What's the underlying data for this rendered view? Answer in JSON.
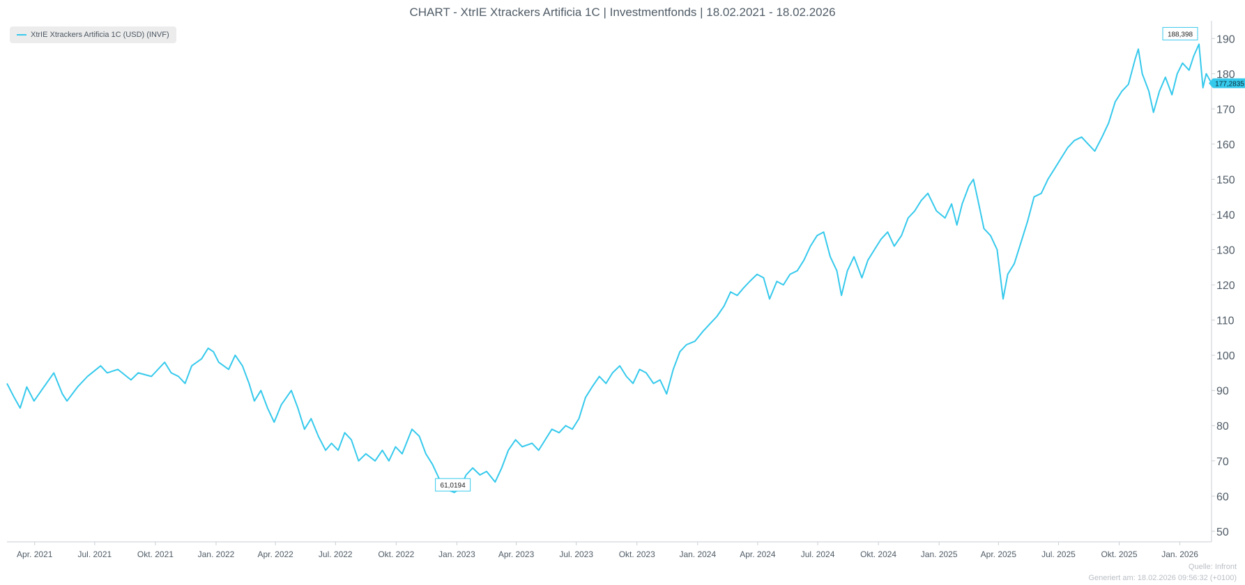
{
  "chart_data": {
    "type": "line",
    "title": "CHART - XtrIE Xtrackers Artificia 1C | Investmentfonds | 18.02.2021 - 18.02.2026",
    "legend": {
      "position": "top-left",
      "label": "XtrIE Xtrackers Artificia 1C (USD) (INVF)"
    },
    "series": [
      {
        "name": "XtrIE Xtrackers Artificia 1C (USD) (INVF)",
        "color": "#35c9ec",
        "points": [
          [
            "2021-02-18",
            92
          ],
          [
            "2021-03-01",
            88
          ],
          [
            "2021-03-10",
            85
          ],
          [
            "2021-03-20",
            91
          ],
          [
            "2021-03-31",
            87
          ],
          [
            "2021-04-15",
            91
          ],
          [
            "2021-04-30",
            95
          ],
          [
            "2021-05-13",
            89
          ],
          [
            "2021-05-20",
            87
          ],
          [
            "2021-06-05",
            91
          ],
          [
            "2021-06-20",
            94
          ],
          [
            "2021-07-10",
            97
          ],
          [
            "2021-07-20",
            95
          ],
          [
            "2021-08-05",
            96
          ],
          [
            "2021-08-25",
            93
          ],
          [
            "2021-09-05",
            95
          ],
          [
            "2021-09-25",
            94
          ],
          [
            "2021-10-15",
            98
          ],
          [
            "2021-10-25",
            95
          ],
          [
            "2021-11-05",
            94
          ],
          [
            "2021-11-15",
            92
          ],
          [
            "2021-11-25",
            97
          ],
          [
            "2021-12-10",
            99
          ],
          [
            "2021-12-20",
            102
          ],
          [
            "2021-12-28",
            101
          ],
          [
            "2022-01-05",
            98
          ],
          [
            "2022-01-20",
            96
          ],
          [
            "2022-01-30",
            100
          ],
          [
            "2022-02-10",
            97
          ],
          [
            "2022-02-20",
            92
          ],
          [
            "2022-02-28",
            87
          ],
          [
            "2022-03-10",
            90
          ],
          [
            "2022-03-20",
            85
          ],
          [
            "2022-03-30",
            81
          ],
          [
            "2022-04-10",
            86
          ],
          [
            "2022-04-25",
            90
          ],
          [
            "2022-05-05",
            85
          ],
          [
            "2022-05-15",
            79
          ],
          [
            "2022-05-25",
            82
          ],
          [
            "2022-06-05",
            77
          ],
          [
            "2022-06-16",
            73
          ],
          [
            "2022-06-25",
            75
          ],
          [
            "2022-07-05",
            73
          ],
          [
            "2022-07-15",
            78
          ],
          [
            "2022-07-25",
            76
          ],
          [
            "2022-08-05",
            70
          ],
          [
            "2022-08-16",
            72
          ],
          [
            "2022-08-30",
            70
          ],
          [
            "2022-09-10",
            73
          ],
          [
            "2022-09-20",
            70
          ],
          [
            "2022-09-30",
            74
          ],
          [
            "2022-10-10",
            72
          ],
          [
            "2022-10-25",
            79
          ],
          [
            "2022-11-05",
            77
          ],
          [
            "2022-11-15",
            72
          ],
          [
            "2022-11-25",
            69
          ],
          [
            "2022-12-05",
            65
          ],
          [
            "2022-12-15",
            62
          ],
          [
            "2022-12-28",
            61.0194
          ],
          [
            "2023-01-05",
            62
          ],
          [
            "2023-01-15",
            66
          ],
          [
            "2023-01-25",
            68
          ],
          [
            "2023-02-05",
            66
          ],
          [
            "2023-02-15",
            67
          ],
          [
            "2023-02-28",
            64
          ],
          [
            "2023-03-10",
            68
          ],
          [
            "2023-03-20",
            73
          ],
          [
            "2023-03-31",
            76
          ],
          [
            "2023-04-10",
            74
          ],
          [
            "2023-04-25",
            75
          ],
          [
            "2023-05-05",
            73
          ],
          [
            "2023-05-15",
            76
          ],
          [
            "2023-05-25",
            79
          ],
          [
            "2023-06-05",
            78
          ],
          [
            "2023-06-15",
            80
          ],
          [
            "2023-06-25",
            79
          ],
          [
            "2023-07-05",
            82
          ],
          [
            "2023-07-15",
            88
          ],
          [
            "2023-07-25",
            91
          ],
          [
            "2023-08-05",
            94
          ],
          [
            "2023-08-15",
            92
          ],
          [
            "2023-08-25",
            95
          ],
          [
            "2023-09-05",
            97
          ],
          [
            "2023-09-15",
            94
          ],
          [
            "2023-09-25",
            92
          ],
          [
            "2023-10-05",
            96
          ],
          [
            "2023-10-15",
            95
          ],
          [
            "2023-10-26",
            92
          ],
          [
            "2023-11-05",
            93
          ],
          [
            "2023-11-15",
            89
          ],
          [
            "2023-11-25",
            96
          ],
          [
            "2023-12-05",
            101
          ],
          [
            "2023-12-15",
            103
          ],
          [
            "2023-12-28",
            104
          ],
          [
            "2024-01-10",
            107
          ],
          [
            "2024-01-20",
            109
          ],
          [
            "2024-01-30",
            111
          ],
          [
            "2024-02-10",
            114
          ],
          [
            "2024-02-20",
            118
          ],
          [
            "2024-03-01",
            117
          ],
          [
            "2024-03-10",
            119
          ],
          [
            "2024-03-20",
            121
          ],
          [
            "2024-03-31",
            123
          ],
          [
            "2024-04-10",
            122
          ],
          [
            "2024-04-19",
            116
          ],
          [
            "2024-04-30",
            121
          ],
          [
            "2024-05-10",
            120
          ],
          [
            "2024-05-20",
            123
          ],
          [
            "2024-05-31",
            124
          ],
          [
            "2024-06-10",
            127
          ],
          [
            "2024-06-20",
            131
          ],
          [
            "2024-06-30",
            134
          ],
          [
            "2024-07-10",
            135
          ],
          [
            "2024-07-20",
            128
          ],
          [
            "2024-07-30",
            124
          ],
          [
            "2024-08-06",
            117
          ],
          [
            "2024-08-15",
            124
          ],
          [
            "2024-08-25",
            128
          ],
          [
            "2024-09-06",
            122
          ],
          [
            "2024-09-15",
            127
          ],
          [
            "2024-09-25",
            130
          ],
          [
            "2024-10-05",
            133
          ],
          [
            "2024-10-15",
            135
          ],
          [
            "2024-10-25",
            131
          ],
          [
            "2024-11-05",
            134
          ],
          [
            "2024-11-15",
            139
          ],
          [
            "2024-11-25",
            141
          ],
          [
            "2024-12-05",
            144
          ],
          [
            "2024-12-15",
            146
          ],
          [
            "2024-12-28",
            141
          ],
          [
            "2025-01-10",
            139
          ],
          [
            "2025-01-20",
            143
          ],
          [
            "2025-01-28",
            137
          ],
          [
            "2025-02-05",
            143
          ],
          [
            "2025-02-15",
            148
          ],
          [
            "2025-02-22",
            150
          ],
          [
            "2025-03-01",
            144
          ],
          [
            "2025-03-10",
            136
          ],
          [
            "2025-03-20",
            134
          ],
          [
            "2025-03-30",
            130
          ],
          [
            "2025-04-08",
            116
          ],
          [
            "2025-04-15",
            123
          ],
          [
            "2025-04-25",
            126
          ],
          [
            "2025-05-05",
            132
          ],
          [
            "2025-05-15",
            138
          ],
          [
            "2025-05-25",
            145
          ],
          [
            "2025-06-05",
            146
          ],
          [
            "2025-06-15",
            150
          ],
          [
            "2025-06-25",
            153
          ],
          [
            "2025-07-05",
            156
          ],
          [
            "2025-07-15",
            159
          ],
          [
            "2025-07-25",
            161
          ],
          [
            "2025-08-05",
            162
          ],
          [
            "2025-08-15",
            160
          ],
          [
            "2025-08-25",
            158
          ],
          [
            "2025-09-05",
            162
          ],
          [
            "2025-09-15",
            166
          ],
          [
            "2025-09-25",
            172
          ],
          [
            "2025-10-05",
            175
          ],
          [
            "2025-10-15",
            177
          ],
          [
            "2025-10-25",
            184
          ],
          [
            "2025-10-30",
            187
          ],
          [
            "2025-11-05",
            180
          ],
          [
            "2025-11-15",
            175
          ],
          [
            "2025-11-22",
            169
          ],
          [
            "2025-12-01",
            175
          ],
          [
            "2025-12-10",
            179
          ],
          [
            "2025-12-20",
            174
          ],
          [
            "2025-12-28",
            180
          ],
          [
            "2026-01-05",
            183
          ],
          [
            "2026-01-15",
            181
          ],
          [
            "2026-01-22",
            185
          ],
          [
            "2026-01-30",
            188.398
          ],
          [
            "2026-02-05",
            176
          ],
          [
            "2026-02-10",
            180
          ],
          [
            "2026-02-18",
            177.2835
          ]
        ]
      }
    ],
    "x_axis": {
      "range": [
        "2021-02-18",
        "2026-02-18"
      ],
      "ticks": [
        {
          "date": "2021-04-01",
          "label": "Apr. 2021"
        },
        {
          "date": "2021-07-01",
          "label": "Jul. 2021"
        },
        {
          "date": "2021-10-01",
          "label": "Okt. 2021"
        },
        {
          "date": "2022-01-01",
          "label": "Jan. 2022"
        },
        {
          "date": "2022-04-01",
          "label": "Apr. 2022"
        },
        {
          "date": "2022-07-01",
          "label": "Jul. 2022"
        },
        {
          "date": "2022-10-01",
          "label": "Okt. 2022"
        },
        {
          "date": "2023-01-01",
          "label": "Jan. 2023"
        },
        {
          "date": "2023-04-01",
          "label": "Apr. 2023"
        },
        {
          "date": "2023-07-01",
          "label": "Jul. 2023"
        },
        {
          "date": "2023-10-01",
          "label": "Okt. 2023"
        },
        {
          "date": "2024-01-01",
          "label": "Jan. 2024"
        },
        {
          "date": "2024-04-01",
          "label": "Apr. 2024"
        },
        {
          "date": "2024-07-01",
          "label": "Jul. 2024"
        },
        {
          "date": "2024-10-01",
          "label": "Okt. 2024"
        },
        {
          "date": "2025-01-01",
          "label": "Jan. 2025"
        },
        {
          "date": "2025-04-01",
          "label": "Apr. 2025"
        },
        {
          "date": "2025-07-01",
          "label": "Jul. 2025"
        },
        {
          "date": "2025-10-01",
          "label": "Okt. 2025"
        },
        {
          "date": "2026-01-01",
          "label": "Jan. 2026"
        }
      ]
    },
    "y_axis": {
      "position": "right",
      "ylim": [
        47,
        195
      ],
      "ticks": [
        50,
        60,
        70,
        80,
        90,
        100,
        110,
        120,
        130,
        140,
        150,
        160,
        170,
        180,
        190
      ]
    },
    "grid": false,
    "annotations": [
      {
        "kind": "max",
        "date": "2026-01-30",
        "value": 188.398,
        "label": "188,398"
      },
      {
        "kind": "min",
        "date": "2022-12-28",
        "value": 61.0194,
        "label": "61,0194"
      },
      {
        "kind": "last",
        "date": "2026-02-18",
        "value": 177.2835,
        "label": "177,2835"
      }
    ]
  },
  "footer": {
    "source": "Quelle: Infront",
    "generated": "Generiert am: 18.02.2026 09:56:32 (+0100)"
  },
  "colors": {
    "line": "#35c9ec",
    "axis": "#c9ced3",
    "text": "#4f5b66",
    "footer_text": "#b9bec4"
  }
}
